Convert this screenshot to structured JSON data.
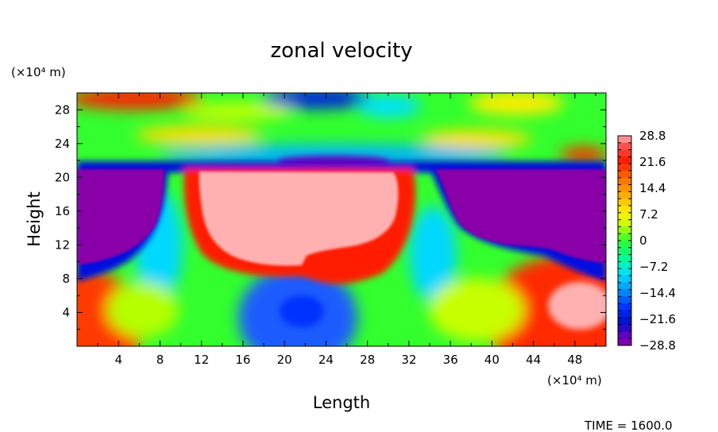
{
  "chart_data": {
    "type": "heatmap",
    "title": "zonal velocity",
    "xlabel": "Length",
    "ylabel": "Height",
    "x_unit_label": "(×10⁴ m)",
    "y_unit_label": "(×10⁴ m)",
    "xlim": [
      0,
      51
    ],
    "ylim": [
      0,
      30
    ],
    "x_ticks": [
      4,
      8,
      12,
      16,
      20,
      24,
      28,
      32,
      36,
      40,
      44,
      48
    ],
    "y_ticks": [
      4,
      8,
      12,
      16,
      20,
      24,
      28
    ],
    "colorbar": {
      "labels": [
        "28.8",
        "21.6",
        "14.4",
        "7.2",
        "0",
        "−7.2",
        "−14.4",
        "−21.6",
        "−28.8"
      ],
      "values": [
        28.8,
        21.6,
        14.4,
        7.2,
        0,
        -7.2,
        -14.4,
        -21.6,
        -28.8
      ],
      "min": -28.8,
      "max": 28.8
    },
    "annotation": "TIME = 1600.0",
    "field_description": [
      {
        "region": "x 0-9, y 9.5-21",
        "value": -28.8
      },
      {
        "region": "x 11.5-31, y 8.5-21",
        "value": 28.8
      },
      {
        "region": "x 34-51, y 9-21",
        "value": -28.8
      },
      {
        "region": "x 0-4, y 0-6",
        "value": 21
      },
      {
        "region": "x 18-26, y 0-9",
        "value": -20
      },
      {
        "region": "x 42-51, y 0-7.5",
        "value": 24
      },
      {
        "region": "x 0-51, y 21-23",
        "value": -18
      },
      {
        "region": "x 0-10, y 29-30",
        "value": 22
      },
      {
        "region": "x 22-30, y 29-30",
        "value": -24
      }
    ]
  }
}
